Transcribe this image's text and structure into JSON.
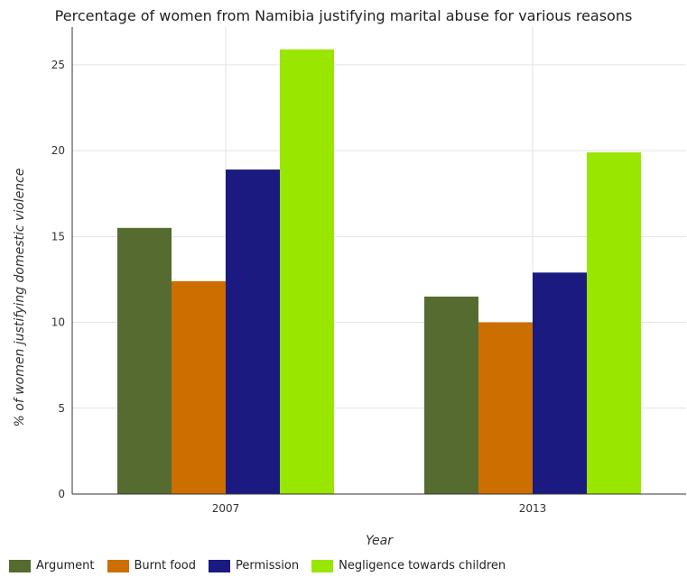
{
  "chart_data": {
    "type": "bar",
    "title": "Percentage of women from Namibia justifying marital abuse for various reasons",
    "xlabel": "Year",
    "ylabel": "% of women justifying domestic violence",
    "categories": [
      "2007",
      "2013"
    ],
    "series": [
      {
        "name": "Argument",
        "values": [
          15.5,
          11.5
        ],
        "color": "#556b2f"
      },
      {
        "name": "Burnt food",
        "values": [
          12.4,
          10.0
        ],
        "color": "#cc6e00"
      },
      {
        "name": "Permission",
        "values": [
          18.9,
          12.9
        ],
        "color": "#1a1a80"
      },
      {
        "name": "Negligence towards children",
        "values": [
          25.9,
          19.9
        ],
        "color": "#99e600"
      }
    ],
    "ylim": [
      0,
      27.2
    ],
    "yticks": [
      0,
      5,
      10,
      15,
      20,
      25
    ],
    "grid": true,
    "legend_position": "bottom-left"
  }
}
